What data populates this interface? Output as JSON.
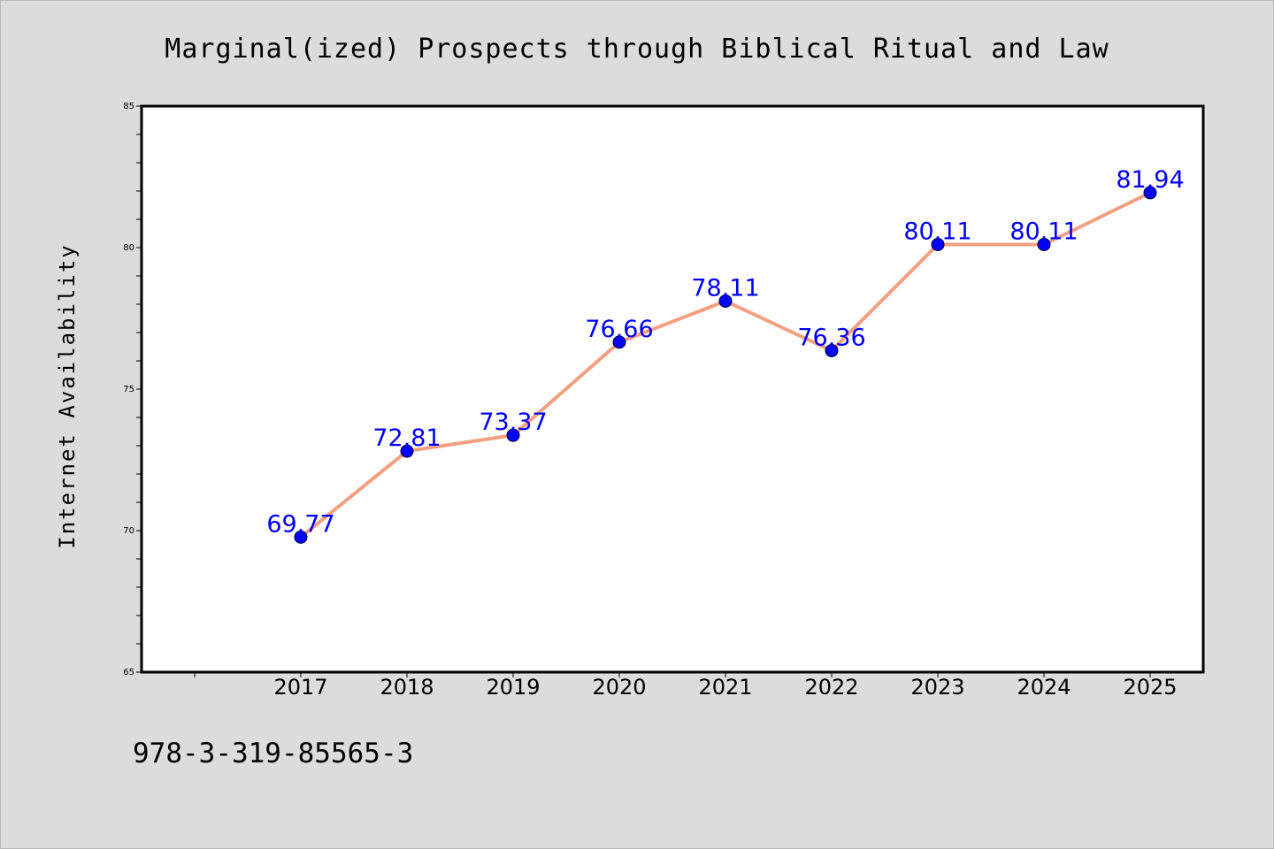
{
  "footer": {
    "isbn": "978-3-319-85565-3"
  },
  "chart_data": {
    "type": "line",
    "title": "Marginal(ized) Prospects through Biblical Ritual and Law",
    "xlabel": "",
    "ylabel": "Internet Availability",
    "categories": [
      "2017",
      "2018",
      "2019",
      "2020",
      "2021",
      "2022",
      "2023",
      "2024",
      "2025"
    ],
    "series": [
      {
        "values": [
          69.77,
          72.81,
          73.37,
          76.66,
          78.11,
          76.36,
          80.11,
          80.11,
          81.94
        ],
        "labels": [
          "69.77",
          "72.81",
          "73.37",
          "76.66",
          "78.11",
          "76.36",
          "80.11",
          "80.11",
          "81.94"
        ],
        "line_color": "#f4a080",
        "marker_color": "#0000ff"
      }
    ],
    "ylim": [
      65,
      85
    ],
    "y_ticks": [
      "65",
      "70",
      "75",
      "80",
      "85"
    ],
    "grid": false,
    "legend": "none"
  }
}
